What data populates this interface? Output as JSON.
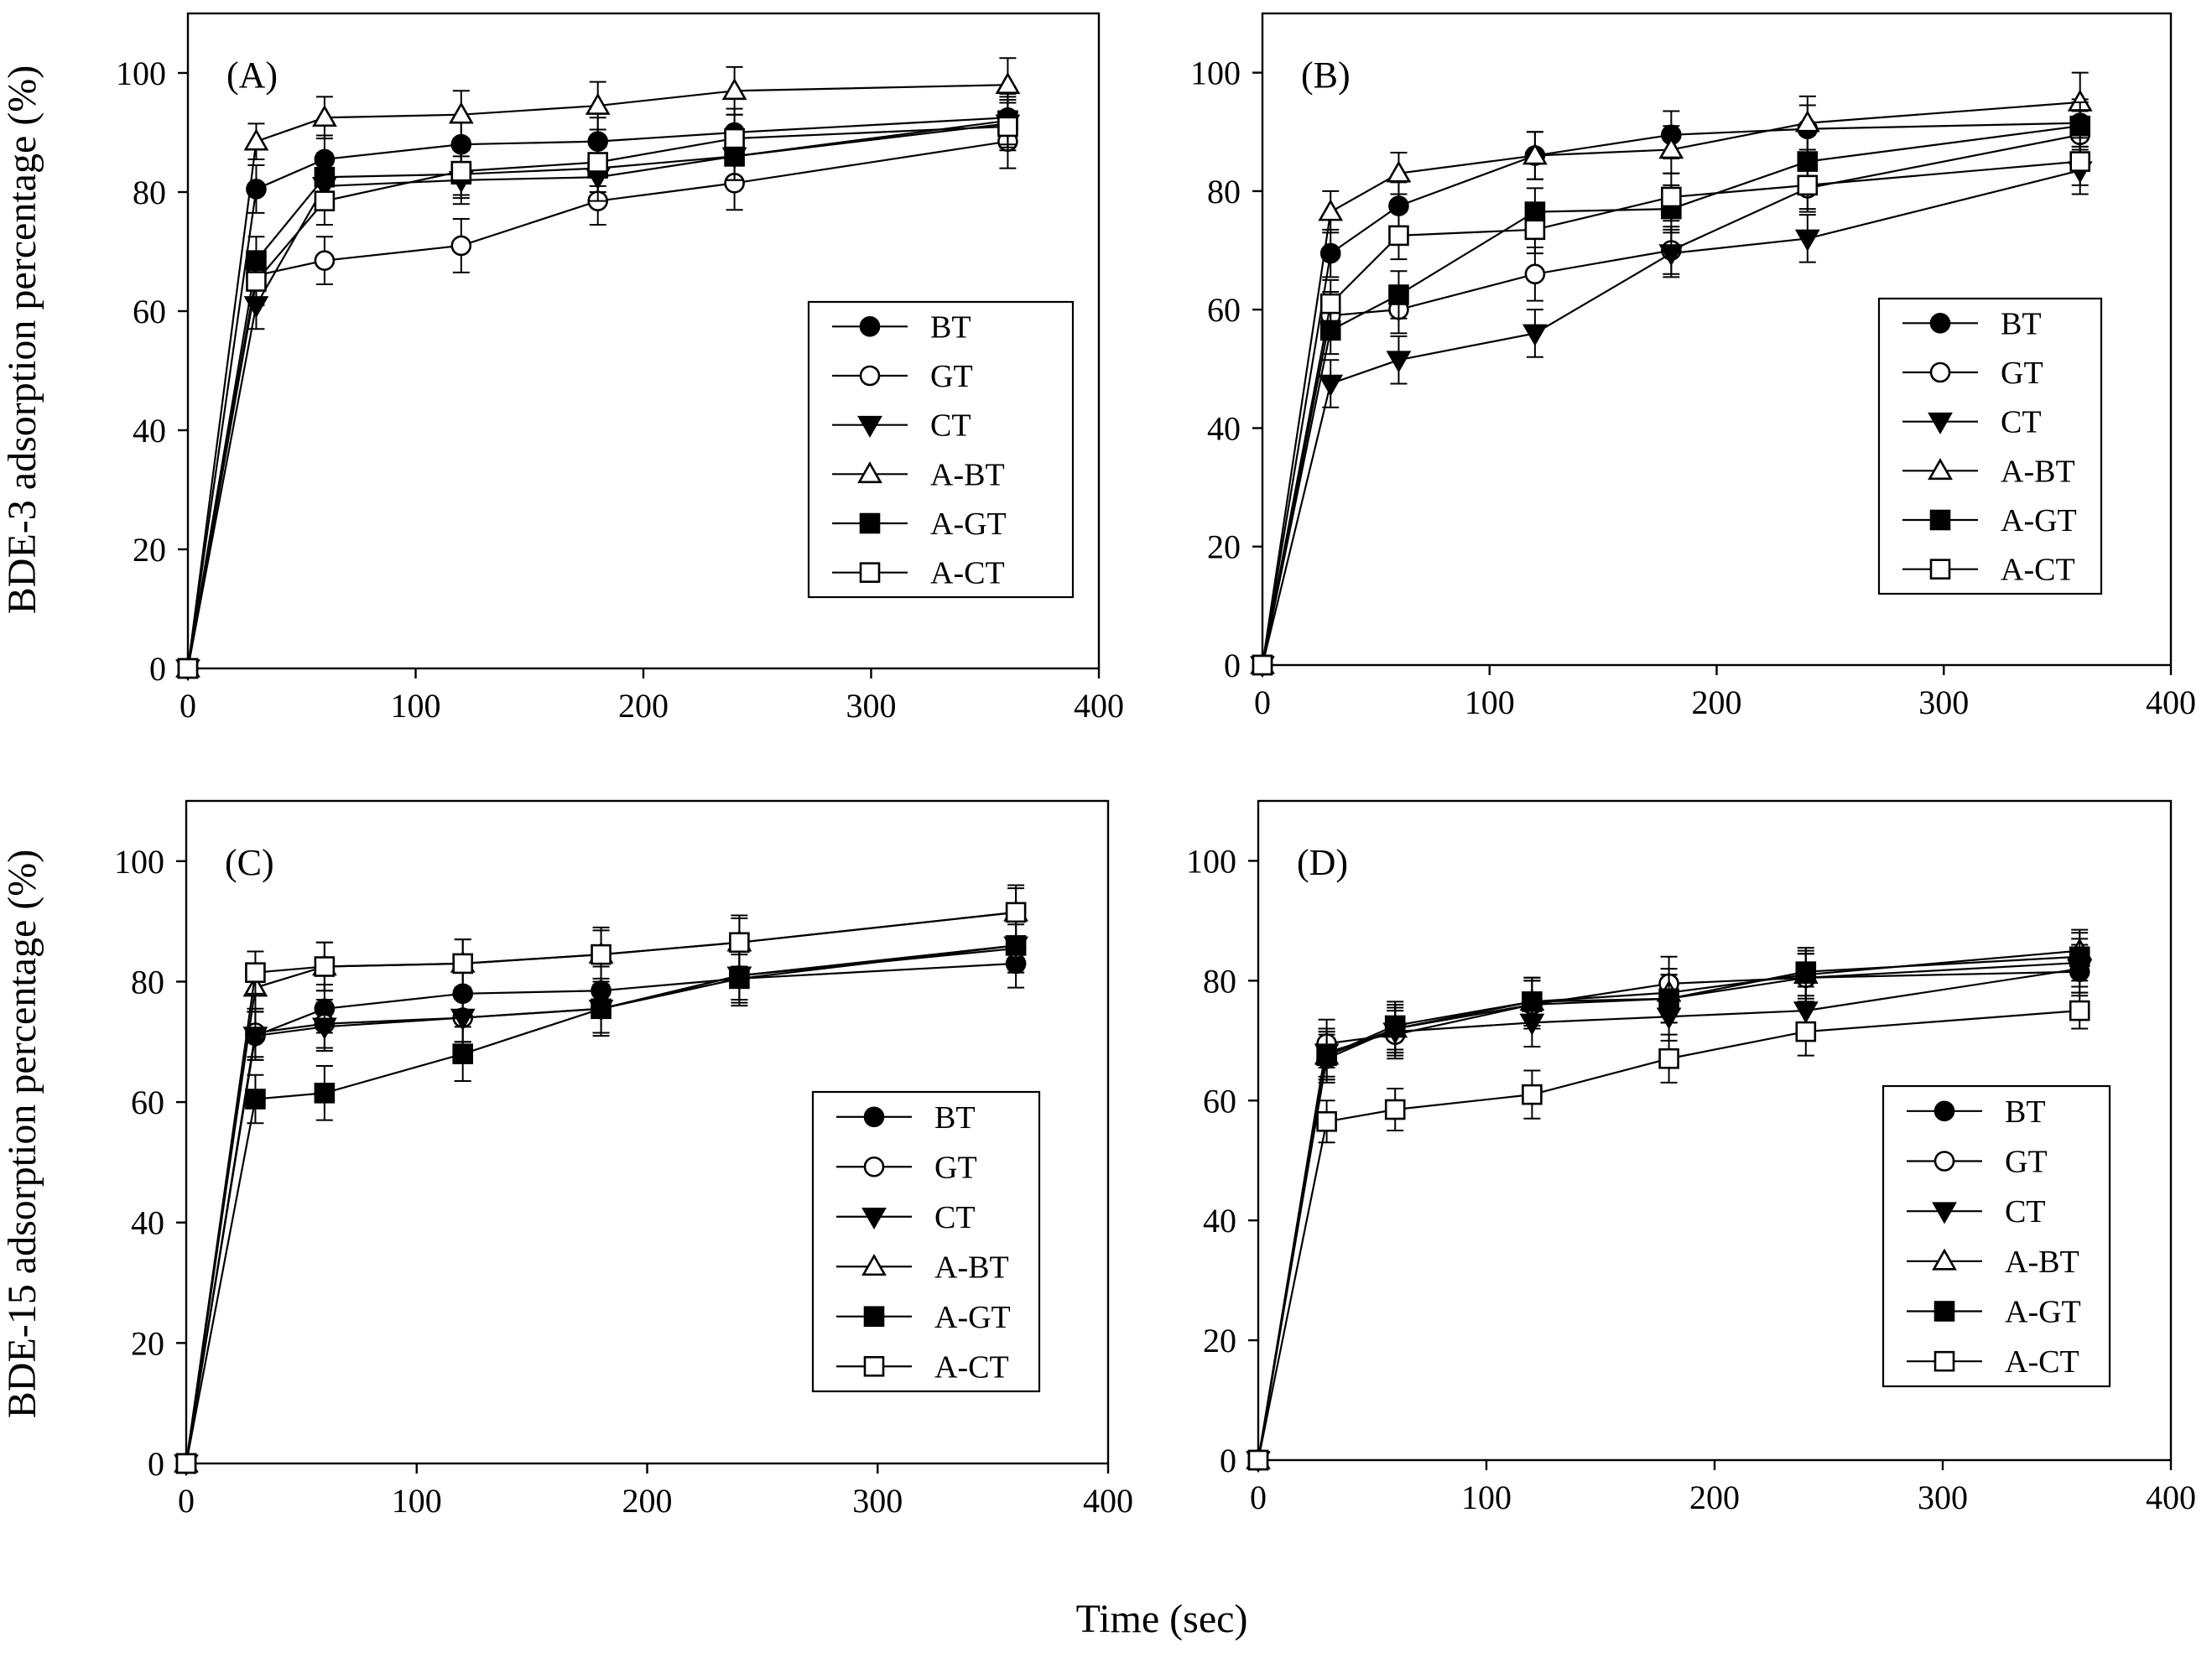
{
  "figure": {
    "x_axis_title": "Time (sec)",
    "y_axis_title_top": "BDE-3 adsorption percentage (%)",
    "y_axis_title_bottom": "BDE-15 adsorption percentage (%)"
  },
  "legend_labels": [
    "BT",
    "GT",
    "CT",
    "A-BT",
    "A-GT",
    "A-CT"
  ],
  "chart_data": [
    {
      "type": "line",
      "panel_label": "(A)",
      "x": [
        0,
        30,
        60,
        120,
        180,
        240,
        360
      ],
      "xlim": [
        0,
        400
      ],
      "ylim": [
        0,
        110
      ],
      "xticks": [
        0,
        100,
        200,
        300,
        400
      ],
      "yticks": [
        0,
        20,
        40,
        60,
        80,
        100
      ],
      "legend_position": "lower-right",
      "series": [
        {
          "name": "BT",
          "marker": "circle-filled",
          "values": [
            0,
            80.5,
            85.5,
            88,
            88.5,
            90,
            92.5
          ],
          "errors": [
            0,
            4,
            4,
            4,
            4,
            4,
            4
          ]
        },
        {
          "name": "GT",
          "marker": "circle-open",
          "values": [
            0,
            66,
            68.5,
            71,
            78.5,
            81.5,
            88.5
          ],
          "errors": [
            0,
            4,
            4,
            4.5,
            4,
            4.5,
            4.5
          ]
        },
        {
          "name": "CT",
          "marker": "triangle-down-filled",
          "values": [
            0,
            61,
            81,
            82,
            82.5,
            86,
            91.5
          ],
          "errors": [
            0,
            4,
            4,
            4,
            4,
            4,
            4
          ]
        },
        {
          "name": "A-BT",
          "marker": "triangle-up-open",
          "values": [
            0,
            88.5,
            92.5,
            93,
            94.5,
            97,
            98
          ],
          "errors": [
            0,
            3,
            3.5,
            4,
            4,
            4,
            4.5
          ]
        },
        {
          "name": "A-GT",
          "marker": "square-filled",
          "values": [
            0,
            68.5,
            82.5,
            83,
            84,
            86,
            92
          ],
          "errors": [
            0,
            4,
            4,
            4,
            4,
            4,
            4
          ]
        },
        {
          "name": "A-CT",
          "marker": "square-open",
          "values": [
            0,
            65,
            78.5,
            83.5,
            85,
            89,
            91
          ],
          "errors": [
            0,
            4,
            4,
            4,
            4,
            4,
            4
          ]
        }
      ]
    },
    {
      "type": "line",
      "panel_label": "(B)",
      "x": [
        0,
        30,
        60,
        120,
        180,
        240,
        360
      ],
      "xlim": [
        0,
        400
      ],
      "ylim": [
        0,
        110
      ],
      "xticks": [
        0,
        100,
        200,
        300,
        400
      ],
      "yticks": [
        0,
        20,
        40,
        60,
        80,
        100
      ],
      "legend_position": "lower-right",
      "series": [
        {
          "name": "BT",
          "marker": "circle-filled",
          "values": [
            0,
            69.5,
            77.5,
            86,
            89.5,
            90.5,
            91.5
          ],
          "errors": [
            0,
            4,
            4,
            4,
            4,
            4,
            4
          ]
        },
        {
          "name": "GT",
          "marker": "circle-open",
          "values": [
            0,
            59,
            60,
            66,
            70,
            80.5,
            89.5
          ],
          "errors": [
            0,
            4,
            4,
            4.5,
            4,
            4,
            4
          ]
        },
        {
          "name": "CT",
          "marker": "triangle-down-filled",
          "values": [
            0,
            47.5,
            51.5,
            56,
            69.5,
            72,
            83.5
          ],
          "errors": [
            0,
            4,
            4,
            4,
            4,
            4,
            4
          ]
        },
        {
          "name": "A-BT",
          "marker": "triangle-up-open",
          "values": [
            0,
            76.5,
            83,
            86,
            87,
            91.5,
            95
          ],
          "errors": [
            0,
            3.5,
            3.5,
            4,
            4,
            4.5,
            5
          ]
        },
        {
          "name": "A-GT",
          "marker": "square-filled",
          "values": [
            0,
            56.5,
            62.5,
            76.5,
            77,
            85,
            91
          ],
          "errors": [
            0,
            4,
            4,
            4,
            4,
            4.5,
            4
          ]
        },
        {
          "name": "A-CT",
          "marker": "square-open",
          "values": [
            0,
            61,
            72.5,
            73.5,
            79,
            81,
            85
          ],
          "errors": [
            0,
            4,
            4,
            4,
            4,
            4,
            4
          ]
        }
      ]
    },
    {
      "type": "line",
      "panel_label": "(C)",
      "x": [
        0,
        30,
        60,
        120,
        180,
        240,
        360
      ],
      "xlim": [
        0,
        400
      ],
      "ylim": [
        0,
        110
      ],
      "xticks": [
        0,
        100,
        200,
        300,
        400
      ],
      "yticks": [
        0,
        20,
        40,
        60,
        80,
        100
      ],
      "legend_position": "lower-right",
      "series": [
        {
          "name": "BT",
          "marker": "circle-filled",
          "values": [
            0,
            71,
            75.5,
            78,
            78.5,
            80.5,
            83
          ],
          "errors": [
            0,
            4,
            4,
            4,
            4,
            4,
            4
          ]
        },
        {
          "name": "GT",
          "marker": "circle-open",
          "values": [
            0,
            71.5,
            73,
            74,
            75.5,
            81,
            85.5
          ],
          "errors": [
            0,
            4,
            4,
            4,
            4,
            4,
            4
          ]
        },
        {
          "name": "CT",
          "marker": "triangle-down-filled",
          "values": [
            0,
            71,
            72.5,
            74,
            75.5,
            81,
            86
          ],
          "errors": [
            0,
            4,
            4,
            4,
            4,
            4,
            4
          ]
        },
        {
          "name": "A-BT",
          "marker": "triangle-up-open",
          "values": [
            0,
            79,
            82.5,
            83,
            84.5,
            86.5,
            91.5
          ],
          "errors": [
            0,
            4,
            4,
            4,
            4,
            4,
            4
          ]
        },
        {
          "name": "A-GT",
          "marker": "square-filled",
          "values": [
            0,
            60.5,
            61.5,
            68,
            75.5,
            80.5,
            86
          ],
          "errors": [
            0,
            4,
            4.5,
            4.5,
            4.5,
            4.5,
            4.5
          ]
        },
        {
          "name": "A-CT",
          "marker": "square-open",
          "values": [
            0,
            81.5,
            82.5,
            83,
            84.5,
            86.5,
            91.5
          ],
          "errors": [
            0,
            3.5,
            4,
            4,
            4.5,
            4.5,
            4.5
          ]
        }
      ]
    },
    {
      "type": "line",
      "panel_label": "(D)",
      "x": [
        0,
        30,
        60,
        120,
        180,
        240,
        360
      ],
      "xlim": [
        0,
        400
      ],
      "ylim": [
        0,
        110
      ],
      "xticks": [
        0,
        100,
        200,
        300,
        400
      ],
      "yticks": [
        0,
        20,
        40,
        60,
        80,
        100
      ],
      "legend_position": "lower-right",
      "series": [
        {
          "name": "BT",
          "marker": "circle-filled",
          "values": [
            0,
            67,
            72,
            76,
            77,
            80.5,
            81.5
          ],
          "errors": [
            0,
            4,
            4,
            4,
            4,
            4,
            4
          ]
        },
        {
          "name": "GT",
          "marker": "circle-open",
          "values": [
            0,
            69.5,
            71,
            76,
            79.5,
            80.5,
            83
          ],
          "errors": [
            0,
            4,
            4,
            4,
            4.5,
            4,
            4
          ]
        },
        {
          "name": "CT",
          "marker": "triangle-down-filled",
          "values": [
            0,
            68,
            71.5,
            73,
            74,
            75,
            82
          ],
          "errors": [
            0,
            4,
            4,
            4,
            4,
            4,
            4
          ]
        },
        {
          "name": "A-BT",
          "marker": "triangle-up-open",
          "values": [
            0,
            67.5,
            72,
            76.5,
            78,
            81,
            85
          ],
          "errors": [
            0,
            4,
            4,
            4,
            4,
            4,
            3.5
          ]
        },
        {
          "name": "A-GT",
          "marker": "square-filled",
          "values": [
            0,
            67.5,
            72.5,
            76.5,
            77,
            81.5,
            84
          ],
          "errors": [
            0,
            4,
            4,
            4,
            4,
            4,
            4
          ]
        },
        {
          "name": "A-CT",
          "marker": "square-open",
          "values": [
            0,
            56.5,
            58.5,
            61,
            67,
            71.5,
            75
          ],
          "errors": [
            0,
            3.5,
            3.5,
            4,
            4,
            4,
            3
          ]
        }
      ]
    }
  ]
}
